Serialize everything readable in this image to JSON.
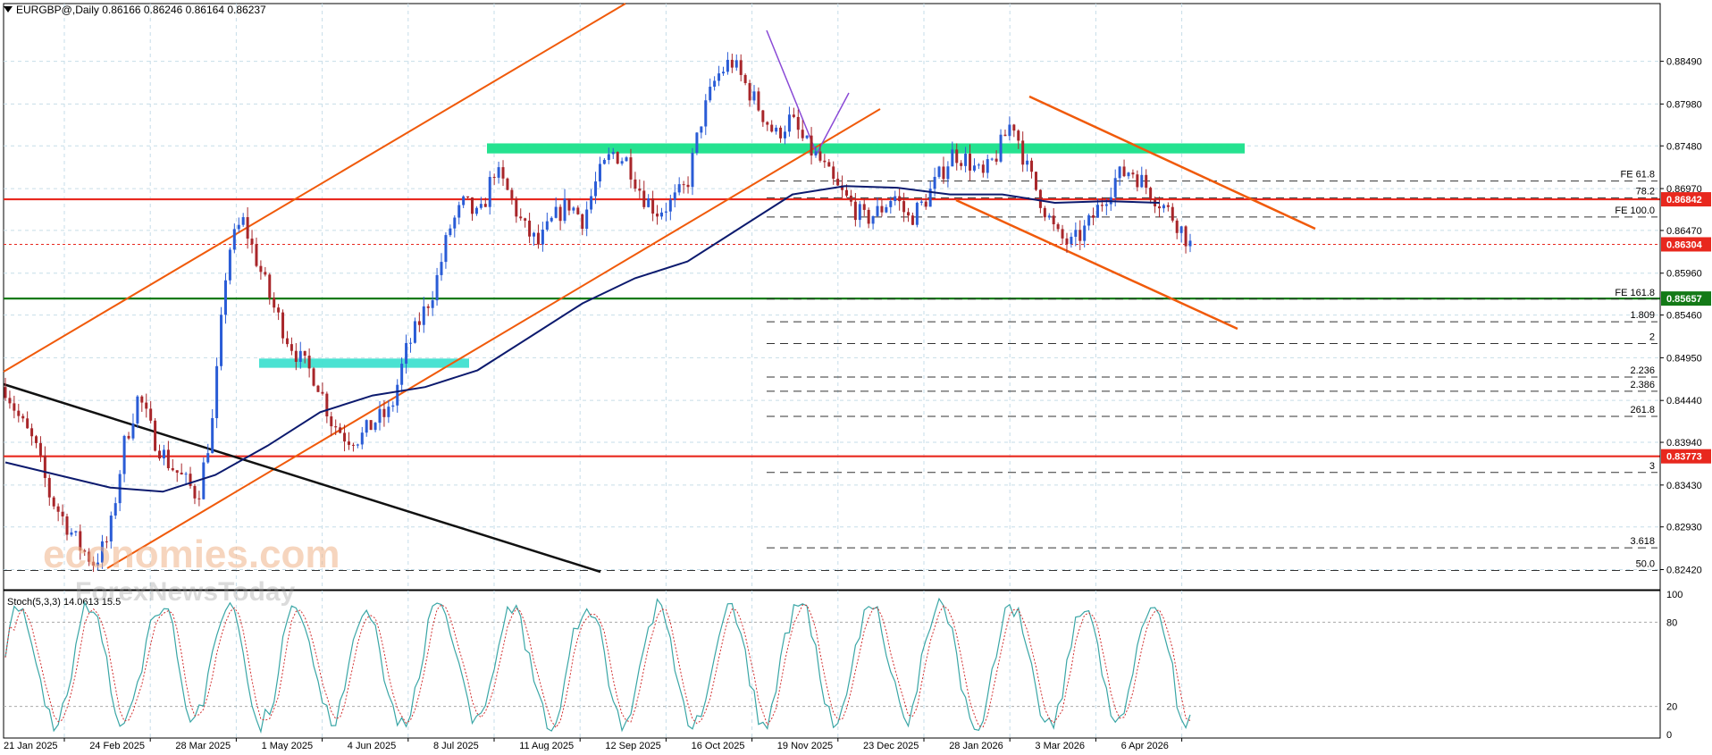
{
  "header": {
    "symbol_line": "EURGBP@,Daily  0.86166 0.86246 0.86164 0.86237",
    "stoch_label": "Stoch(5,3,3) 14.0613 15.5"
  },
  "watermark": {
    "line1": "economies.com",
    "line2": "ForexNewsToday"
  },
  "chart_data": {
    "type": "candlestick",
    "symbol": "EURGBP@",
    "timeframe": "Daily",
    "ohlc_header": {
      "open": 0.86166,
      "high": 0.86246,
      "low": 0.86164,
      "close": 0.86237
    },
    "ylim": [
      0.8218,
      0.8903
    ],
    "y_ticks": [
      0.8849,
      0.8798,
      0.8748,
      0.8697,
      0.8647,
      0.8596,
      0.8546,
      0.8495,
      0.8444,
      0.8394,
      0.8343,
      0.8293,
      0.8242
    ],
    "y_tick_labels": [
      "0.88490",
      "0.87980",
      "0.87480",
      "0.86970",
      "0.86470",
      "0.85960",
      "0.85460",
      "0.84950",
      "0.84440",
      "0.83940",
      "0.83430",
      "0.82930",
      "0.82420"
    ],
    "x_tick_labels": [
      "21 Jan 2025",
      "24 Feb 2025",
      "28 Mar 2025",
      "1 May 2025",
      "4 Jun 2025",
      "8 Jul 2025",
      "11 Aug 2025",
      "12 Sep 2025",
      "16 Oct 2025",
      "19 Nov 2025",
      "23 Dec 2025",
      "28 Jan 2026",
      "3 Mar 2026",
      "6 Apr 2026"
    ],
    "price_path": [
      [
        0.846,
        0.842,
        0.839,
        0.833,
        0.83,
        0.827,
        0.825
      ],
      [
        0.828,
        0.839,
        0.845,
        0.84,
        0.837,
        0.835
      ],
      [
        0.833,
        0.842,
        0.862,
        0.866,
        0.861,
        0.856,
        0.852
      ],
      [
        0.849,
        0.847,
        0.842,
        0.84,
        0.84,
        0.842
      ],
      [
        0.843,
        0.85,
        0.854,
        0.858,
        0.865,
        0.868,
        0.866
      ],
      [
        0.872,
        0.869,
        0.865,
        0.863,
        0.866,
        0.868,
        0.866
      ],
      [
        0.871,
        0.874,
        0.873,
        0.869,
        0.867,
        0.868
      ],
      [
        0.87,
        0.878,
        0.883,
        0.885,
        0.882,
        0.879,
        0.876,
        0.878
      ],
      [
        0.875,
        0.873,
        0.87,
        0.868,
        0.866,
        0.867,
        0.869
      ],
      [
        0.866,
        0.868,
        0.871,
        0.874,
        0.873,
        0.871
      ],
      [
        0.874,
        0.878,
        0.872,
        0.868,
        0.864,
        0.863,
        0.865
      ],
      [
        0.868,
        0.871,
        0.872,
        0.87,
        0.868,
        0.866,
        0.863
      ]
    ],
    "ma_path": [
      0.837,
      0.8355,
      0.834,
      0.8335,
      0.8355,
      0.839,
      0.843,
      0.845,
      0.846,
      0.848,
      0.852,
      0.856,
      0.859,
      0.861,
      0.865,
      0.869,
      0.87,
      0.8698,
      0.869,
      0.869,
      0.868,
      0.8682,
      0.868
    ],
    "key_levels": [
      {
        "price": 0.86842,
        "label": "0.86842",
        "color": "#e8281e"
      },
      {
        "price": 0.86304,
        "label": "0.86304",
        "color": "#e8281e"
      },
      {
        "price": 0.85657,
        "label": "0.85657",
        "color": "#137a17"
      },
      {
        "price": 0.83773,
        "label": "0.83773",
        "color": "#e8281e"
      }
    ],
    "fib_levels": [
      {
        "price": 0.8706,
        "label": "FE 61.8"
      },
      {
        "price": 0.8686,
        "label": "78.2"
      },
      {
        "price": 0.8663,
        "label": "FE 100.0"
      },
      {
        "price": 0.8565,
        "label": "FE 161.8"
      },
      {
        "price": 0.8538,
        "label": "1.809"
      },
      {
        "price": 0.8512,
        "label": "2"
      },
      {
        "price": 0.8472,
        "label": "2.236"
      },
      {
        "price": 0.8455,
        "label": "2.386"
      },
      {
        "price": 0.8425,
        "label": "261.8"
      },
      {
        "price": 0.8358,
        "label": "3"
      },
      {
        "price": 0.8268,
        "label": "3.618"
      },
      {
        "price": 0.8241,
        "label": "50.0"
      }
    ],
    "zones": [
      {
        "price_top": 0.8751,
        "price_bottom": 0.8739,
        "color": "#19e08a"
      },
      {
        "price_top": 0.8494,
        "price_bottom": 0.8483,
        "color": "#40e0d0"
      }
    ],
    "indicator": {
      "name": "Stoch(5,3,3)",
      "ylim": [
        0,
        100
      ],
      "levels": [
        80,
        20
      ],
      "tick_labels": [
        "100",
        "80",
        "20",
        "0"
      ]
    },
    "colors": {
      "bull": "#2a5cd6",
      "bear": "#a8262a",
      "ma": "#0c1a6e",
      "trend": "#f05a0a",
      "stoch_main": "#3aa6a6",
      "stoch_signal": "#d23030",
      "grid": "#c6dde8"
    }
  }
}
